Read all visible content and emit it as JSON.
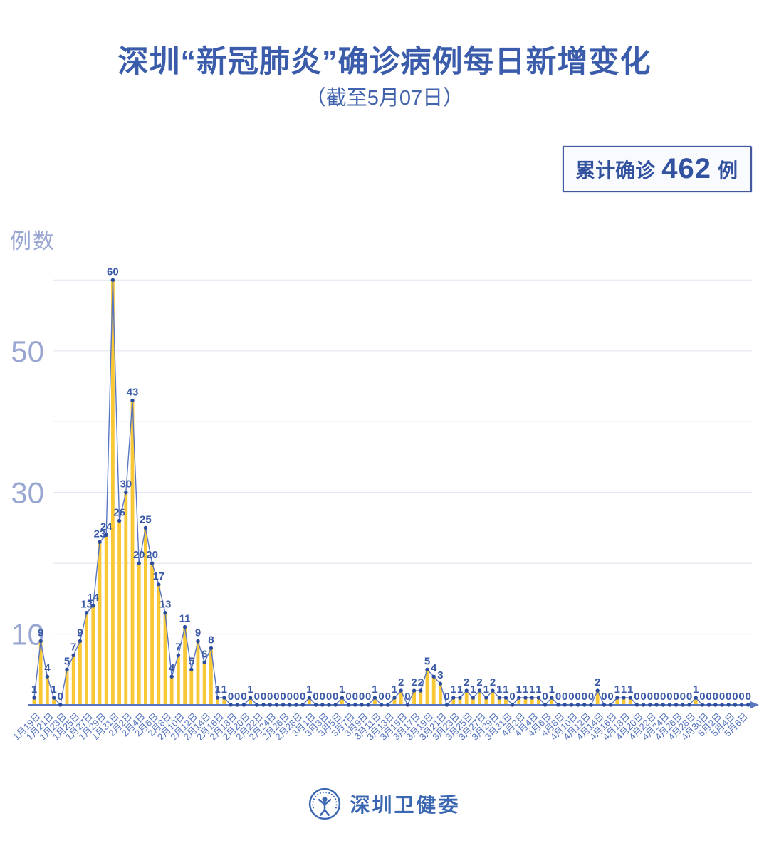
{
  "title": "深圳“新冠肺炎”确诊病例每日新增变化",
  "subtitle": "（截至5月07日）",
  "summary_badge": {
    "label": "累计确诊",
    "value": "462",
    "unit": "例"
  },
  "footer": {
    "org": "深圳卫健委"
  },
  "chart_data": {
    "type": "line",
    "title": "深圳“新冠肺炎”确诊病例每日新增变化",
    "xlabel": "",
    "ylabel": "例数",
    "ylim": [
      0,
      62
    ],
    "grid": true,
    "gridlines": [
      10,
      20,
      30,
      40,
      50,
      60
    ],
    "yticks_labeled": [
      10,
      30,
      50
    ],
    "x_tick_label_every": 2,
    "style": "blue line with point markers, yellow striped column fill, value label above every point, date labels rotated 45deg",
    "colors": {
      "bar": "#f9c836",
      "line": "#5b76c1",
      "marker": "#2c4d9e",
      "value_label": "#3a5aa8",
      "axis": "#5b76c1",
      "grid": "#e3e7f1",
      "date_label": "#5171bd",
      "ytick_label": "#9aa6d2"
    },
    "x": [
      "1月19日",
      "1月20日",
      "1月21日",
      "1月22日",
      "1月23日",
      "1月24日",
      "1月25日",
      "1月26日",
      "1月27日",
      "1月28日",
      "1月29日",
      "1月30日",
      "1月31日",
      "2月1日",
      "2月2日",
      "2月3日",
      "2月4日",
      "2月5日",
      "2月6日",
      "2月7日",
      "2月8日",
      "2月9日",
      "2月10日",
      "2月11日",
      "2月12日",
      "2月13日",
      "2月14日",
      "2月15日",
      "2月16日",
      "2月17日",
      "2月18日",
      "2月19日",
      "2月20日",
      "2月21日",
      "2月22日",
      "2月23日",
      "2月24日",
      "2月25日",
      "2月26日",
      "2月27日",
      "2月28日",
      "2月29日",
      "3月1日",
      "3月2日",
      "3月3日",
      "3月4日",
      "3月5日",
      "3月6日",
      "3月7日",
      "3月8日",
      "3月9日",
      "3月10日",
      "3月11日",
      "3月12日",
      "3月13日",
      "3月14日",
      "3月15日",
      "3月16日",
      "3月17日",
      "3月18日",
      "3月19日",
      "3月20日",
      "3月21日",
      "3月22日",
      "3月23日",
      "3月24日",
      "3月25日",
      "3月26日",
      "3月27日",
      "3月28日",
      "3月29日",
      "3月30日",
      "3月31日",
      "4月1日",
      "4月2日",
      "4月3日",
      "4月4日",
      "4月5日",
      "4月6日",
      "4月7日",
      "4月8日",
      "4月9日",
      "4月10日",
      "4月11日",
      "4月12日",
      "4月13日",
      "4月14日",
      "4月15日",
      "4月16日",
      "4月17日",
      "4月18日",
      "4月19日",
      "4月20日",
      "4月21日",
      "4月22日",
      "4月23日",
      "4月24日",
      "4月25日",
      "4月26日",
      "4月27日",
      "4月28日",
      "4月29日",
      "4月30日",
      "5月1日",
      "5月2日",
      "5月3日",
      "5月4日",
      "5月5日",
      "5月6日",
      "5月7日"
    ],
    "values": [
      1,
      9,
      4,
      1,
      0,
      5,
      7,
      9,
      13,
      14,
      23,
      24,
      60,
      26,
      30,
      43,
      20,
      25,
      20,
      17,
      13,
      4,
      7,
      11,
      5,
      9,
      6,
      8,
      1,
      1,
      0,
      0,
      0,
      1,
      0,
      0,
      0,
      0,
      0,
      0,
      0,
      0,
      1,
      0,
      0,
      0,
      0,
      1,
      0,
      0,
      0,
      0,
      1,
      0,
      0,
      1,
      2,
      0,
      2,
      2,
      5,
      4,
      3,
      0,
      1,
      1,
      2,
      1,
      2,
      1,
      2,
      1,
      1,
      0,
      1,
      1,
      1,
      1,
      0,
      1,
      0,
      0,
      0,
      0,
      0,
      0,
      2,
      0,
      0,
      1,
      1,
      1,
      0,
      0,
      0,
      0,
      0,
      0,
      0,
      0,
      0,
      1,
      0,
      0,
      0,
      0,
      0,
      0,
      0,
      0
    ]
  }
}
